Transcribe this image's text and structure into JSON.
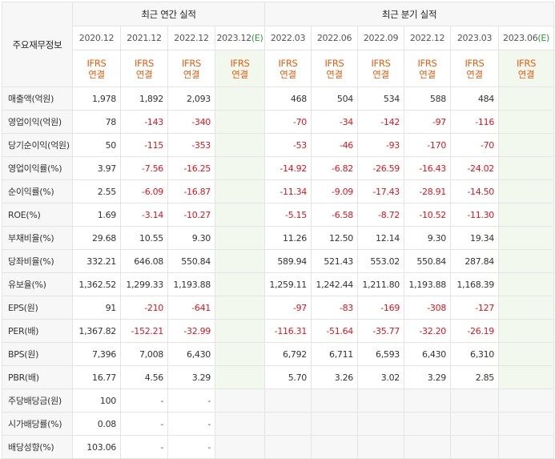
{
  "header": {
    "corner_label": "주요재무정보",
    "annual_group": "최근 연간 실적",
    "quarterly_group": "최근 분기 실적",
    "annual_periods": [
      "2020.12",
      "2021.12",
      "2022.12",
      "2023.12(E)"
    ],
    "quarterly_periods": [
      "2022.03",
      "2022.06",
      "2022.09",
      "2022.12",
      "2023.03",
      "2023.06(E)"
    ],
    "standard_line1": "IFRS",
    "standard_line2": "연결"
  },
  "rows": [
    {
      "label": "매출액(억원)",
      "annual": [
        "1,978",
        "1,892",
        "2,093",
        ""
      ],
      "quarterly": [
        "468",
        "504",
        "534",
        "588",
        "484",
        ""
      ]
    },
    {
      "label": "영업이익(억원)",
      "annual": [
        "78",
        "-143",
        "-340",
        ""
      ],
      "quarterly": [
        "-70",
        "-34",
        "-142",
        "-97",
        "-116",
        ""
      ]
    },
    {
      "label": "당기순이익(억원)",
      "annual": [
        "50",
        "-115",
        "-353",
        ""
      ],
      "quarterly": [
        "-53",
        "-46",
        "-93",
        "-170",
        "-70",
        ""
      ]
    },
    {
      "label": "영업이익률(%)",
      "annual": [
        "3.97",
        "-7.56",
        "-16.25",
        ""
      ],
      "quarterly": [
        "-14.92",
        "-6.82",
        "-26.59",
        "-16.43",
        "-24.02",
        ""
      ]
    },
    {
      "label": "순이익률(%)",
      "annual": [
        "2.55",
        "-6.09",
        "-16.87",
        ""
      ],
      "quarterly": [
        "-11.34",
        "-9.09",
        "-17.43",
        "-28.91",
        "-14.50",
        ""
      ]
    },
    {
      "label": "ROE(%)",
      "annual": [
        "1.69",
        "-3.14",
        "-10.27",
        ""
      ],
      "quarterly": [
        "-5.15",
        "-6.58",
        "-8.72",
        "-10.52",
        "-11.30",
        ""
      ]
    },
    {
      "label": "부채비율(%)",
      "annual": [
        "29.68",
        "10.55",
        "9.30",
        ""
      ],
      "quarterly": [
        "11.26",
        "12.50",
        "12.14",
        "9.30",
        "19.34",
        ""
      ]
    },
    {
      "label": "당좌비율(%)",
      "annual": [
        "332.21",
        "646.08",
        "550.84",
        ""
      ],
      "quarterly": [
        "589.94",
        "521.43",
        "553.02",
        "550.84",
        "287.84",
        ""
      ]
    },
    {
      "label": "유보율(%)",
      "annual": [
        "1,362.52",
        "1,299.33",
        "1,193.88",
        ""
      ],
      "quarterly": [
        "1,259.11",
        "1,242.44",
        "1,211.80",
        "1,193.88",
        "1,168.39",
        ""
      ]
    },
    {
      "label": "EPS(원)",
      "annual": [
        "91",
        "-210",
        "-641",
        ""
      ],
      "quarterly": [
        "-97",
        "-83",
        "-169",
        "-308",
        "-127",
        ""
      ]
    },
    {
      "label": "PER(배)",
      "annual": [
        "1,367.82",
        "-152.21",
        "-32.99",
        ""
      ],
      "quarterly": [
        "-116.31",
        "-51.64",
        "-35.77",
        "-32.20",
        "-26.19",
        ""
      ]
    },
    {
      "label": "BPS(원)",
      "annual": [
        "7,396",
        "7,008",
        "6,430",
        ""
      ],
      "quarterly": [
        "6,792",
        "6,711",
        "6,593",
        "6,430",
        "6,310",
        ""
      ]
    },
    {
      "label": "PBR(배)",
      "annual": [
        "16.77",
        "4.56",
        "3.29",
        ""
      ],
      "quarterly": [
        "5.70",
        "3.26",
        "3.02",
        "3.29",
        "2.85",
        ""
      ]
    },
    {
      "label": "주당배당금(원)",
      "annual": [
        "100",
        "-",
        "-",
        ""
      ],
      "quarterly": [
        "",
        "",
        "",
        "",
        "",
        ""
      ]
    },
    {
      "label": "시가배당률(%)",
      "annual": [
        "0.08",
        "-",
        "-",
        ""
      ],
      "quarterly": [
        "",
        "",
        "",
        "",
        "",
        ""
      ]
    },
    {
      "label": "배당성향(%)",
      "annual": [
        "103.06",
        "-",
        "-",
        ""
      ],
      "quarterly": [
        "",
        "",
        "",
        "",
        "",
        ""
      ]
    }
  ],
  "colors": {
    "negative": "#e4141c",
    "ifrs_text": "#ec5b0b",
    "estimate_bg": "#f3f8ef",
    "header_bg": "#f7f7f7"
  }
}
